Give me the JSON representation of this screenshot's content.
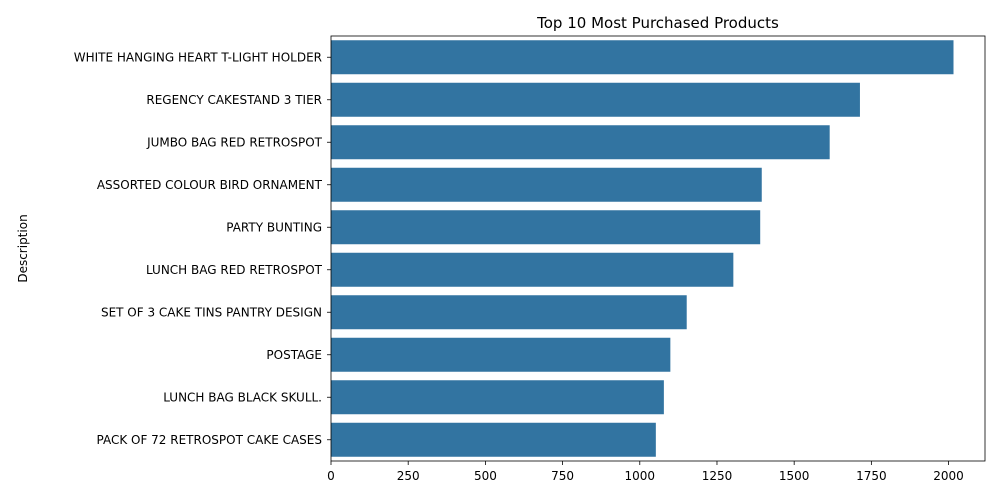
{
  "chart_data": {
    "type": "bar",
    "orientation": "horizontal",
    "title": "Top 10 Most Purchased Products",
    "xlabel": "",
    "ylabel": "Description",
    "categories": [
      "WHITE HANGING HEART T-LIGHT HOLDER",
      "REGENCY CAKESTAND 3 TIER",
      "JUMBO BAG RED RETROSPOT",
      "ASSORTED COLOUR BIRD ORNAMENT",
      "PARTY BUNTING",
      "LUNCH BAG RED RETROSPOT",
      "SET OF 3 CAKE TINS PANTRY DESIGN ",
      "POSTAGE",
      "LUNCH BAG  BLACK SKULL.",
      "PACK OF 72 RETROSPOT CAKE CASES"
    ],
    "values": [
      2016,
      1713,
      1615,
      1395,
      1390,
      1303,
      1152,
      1099,
      1078,
      1052
    ],
    "xlim": [
      0,
      2118
    ],
    "xticks": [
      0,
      250,
      500,
      750,
      1000,
      1250,
      1500,
      1750,
      2000
    ],
    "grid": false,
    "bar_color": "#3274a1"
  }
}
